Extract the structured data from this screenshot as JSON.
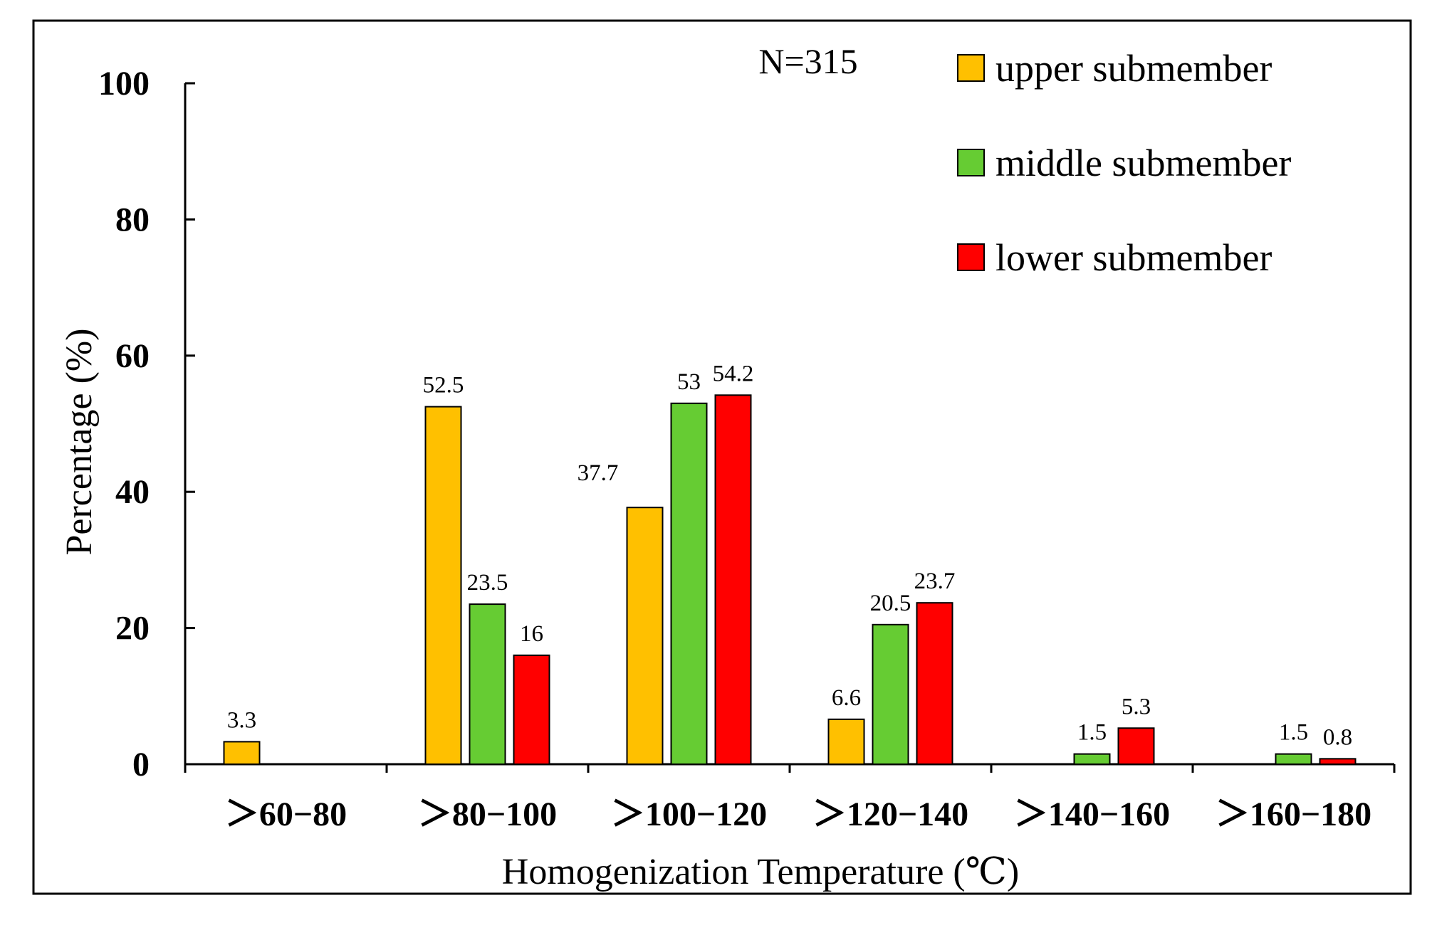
{
  "chart_data": {
    "type": "bar",
    "title": "",
    "annotation": "N=315",
    "xlabel": "Homogenization Temperature (℃)",
    "ylabel": "Percentage (%)",
    "ylim": [
      0,
      100
    ],
    "yticks": [
      "0",
      "20",
      "40",
      "60",
      "80",
      "100"
    ],
    "grid": false,
    "legend_position": "top-right",
    "categories": [
      "＞60−80",
      "＞80−100",
      "＞100−120",
      "＞120−140",
      "＞140−160",
      "＞160−180"
    ],
    "series": [
      {
        "name": "upper submember",
        "color": "#FFC000",
        "values": [
          3.3,
          52.5,
          37.7,
          6.6,
          null,
          null
        ],
        "labels": [
          "3.3",
          "52.5",
          "37.7",
          "6.6",
          "",
          ""
        ]
      },
      {
        "name": "middle submember",
        "color": "#66CC33",
        "values": [
          null,
          23.5,
          53,
          20.5,
          1.5,
          1.5
        ],
        "labels": [
          "",
          "23.5",
          "53",
          "20.5",
          "1.5",
          "1.5"
        ]
      },
      {
        "name": "lower submember",
        "color": "#FF0000",
        "values": [
          null,
          16,
          54.2,
          23.7,
          5.3,
          0.8
        ],
        "labels": [
          "",
          "16",
          "54.2",
          "23.7",
          "5.3",
          "0.8"
        ]
      }
    ]
  }
}
